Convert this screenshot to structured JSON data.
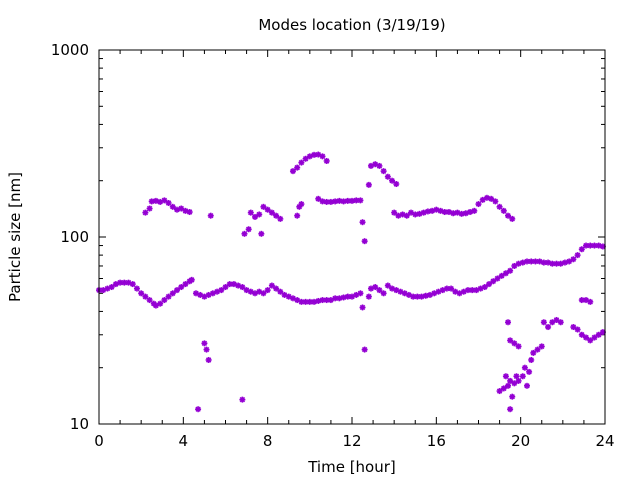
{
  "chart_data": {
    "type": "scatter",
    "title": "Modes location (3/19/19)",
    "xlabel": "Time [hour]",
    "ylabel": "Particle size [nm]",
    "xlim": [
      0,
      24
    ],
    "ylim": [
      10,
      1000
    ],
    "yscale": "log",
    "grid": false,
    "legend": "none",
    "marker_color": "#9400d3",
    "xticks": [
      0,
      4,
      8,
      12,
      16,
      20,
      24
    ],
    "xtick_labels": [
      "0",
      "4",
      "8",
      "12",
      "16",
      "20",
      "24"
    ],
    "yticks": [
      10,
      100,
      1000
    ],
    "ytick_labels": [
      "10",
      "100",
      "1000"
    ],
    "series": [
      {
        "values": [
          [
            0.0,
            52.0
          ],
          [
            0.2,
            52.0
          ],
          [
            0.4,
            53.0
          ],
          [
            0.6,
            54.0
          ],
          [
            0.8,
            56.0
          ],
          [
            1.0,
            57.0
          ],
          [
            1.2,
            57.0
          ],
          [
            1.4,
            57.0
          ],
          [
            1.6,
            56.0
          ],
          [
            1.8,
            53.0
          ],
          [
            2.0,
            50.0
          ],
          [
            2.2,
            48.0
          ],
          [
            2.4,
            46.0
          ],
          [
            2.6,
            44.0
          ],
          [
            2.7,
            43.0
          ],
          [
            2.9,
            44.0
          ],
          [
            3.1,
            46.0
          ],
          [
            3.3,
            48.0
          ],
          [
            3.5,
            50.0
          ],
          [
            3.7,
            52.0
          ],
          [
            3.9,
            54.0
          ],
          [
            4.1,
            56.0
          ],
          [
            4.3,
            58.0
          ],
          [
            4.4,
            59.0
          ],
          [
            4.6,
            50.0
          ],
          [
            4.8,
            49.0
          ],
          [
            5.0,
            48.0
          ],
          [
            5.2,
            49.0
          ],
          [
            5.4,
            50.0
          ],
          [
            5.6,
            51.0
          ],
          [
            5.8,
            52.0
          ],
          [
            6.0,
            54.0
          ],
          [
            6.2,
            56.0
          ],
          [
            6.4,
            56.0
          ],
          [
            6.6,
            55.0
          ],
          [
            6.8,
            54.0
          ],
          [
            7.0,
            52.0
          ],
          [
            7.2,
            51.0
          ],
          [
            7.4,
            50.0
          ],
          [
            7.6,
            51.0
          ],
          [
            7.8,
            50.0
          ],
          [
            8.0,
            52.0
          ],
          [
            8.2,
            55.0
          ],
          [
            8.4,
            53.0
          ],
          [
            8.6,
            51.0
          ],
          [
            8.8,
            49.0
          ],
          [
            9.0,
            48.0
          ],
          [
            9.2,
            47.0
          ],
          [
            9.4,
            46.0
          ],
          [
            9.6,
            45.0
          ],
          [
            9.8,
            45.0
          ],
          [
            10.0,
            45.0
          ],
          [
            10.2,
            45.0
          ],
          [
            10.4,
            45.5
          ],
          [
            10.6,
            46.0
          ],
          [
            10.8,
            46.0
          ],
          [
            11.0,
            46.0
          ],
          [
            11.2,
            47.0
          ],
          [
            11.4,
            47.0
          ],
          [
            11.6,
            47.5
          ],
          [
            11.8,
            48.0
          ],
          [
            12.0,
            48.0
          ],
          [
            12.2,
            49.0
          ],
          [
            12.4,
            50.0
          ],
          [
            12.5,
            42.0
          ],
          [
            12.8,
            48.0
          ],
          [
            12.9,
            53.0
          ],
          [
            13.1,
            54.0
          ],
          [
            13.3,
            52.0
          ],
          [
            13.5,
            50.0
          ],
          [
            13.7,
            55.0
          ],
          [
            13.9,
            53.0
          ],
          [
            14.1,
            52.0
          ],
          [
            14.3,
            51.0
          ],
          [
            14.5,
            50.0
          ],
          [
            14.7,
            49.0
          ],
          [
            14.9,
            48.0
          ],
          [
            15.1,
            48.0
          ],
          [
            15.3,
            48.0
          ],
          [
            15.5,
            48.5
          ],
          [
            15.7,
            49.0
          ],
          [
            15.9,
            50.0
          ],
          [
            16.1,
            51.0
          ],
          [
            16.3,
            52.0
          ],
          [
            16.5,
            53.0
          ],
          [
            16.7,
            53.0
          ],
          [
            16.9,
            51.0
          ],
          [
            17.1,
            50.0
          ],
          [
            17.3,
            51.0
          ],
          [
            17.5,
            52.0
          ],
          [
            17.7,
            52.0
          ],
          [
            17.9,
            52.0
          ],
          [
            18.1,
            53.0
          ],
          [
            18.3,
            54.0
          ],
          [
            18.5,
            56.0
          ],
          [
            18.7,
            58.0
          ],
          [
            18.9,
            60.0
          ],
          [
            19.1,
            62.0
          ],
          [
            19.3,
            64.0
          ],
          [
            19.5,
            66.0
          ],
          [
            19.7,
            70.0
          ],
          [
            19.9,
            72.0
          ],
          [
            20.1,
            73.0
          ],
          [
            20.3,
            74.0
          ],
          [
            20.5,
            74.0
          ],
          [
            20.7,
            74.0
          ],
          [
            20.9,
            74.0
          ],
          [
            21.1,
            73.0
          ],
          [
            21.3,
            73.0
          ],
          [
            21.5,
            72.0
          ],
          [
            21.7,
            72.0
          ],
          [
            21.9,
            72.0
          ],
          [
            22.1,
            73.0
          ],
          [
            22.3,
            74.0
          ],
          [
            22.5,
            76.0
          ],
          [
            22.7,
            80.0
          ],
          [
            22.9,
            86.0
          ],
          [
            23.1,
            90.0
          ],
          [
            23.3,
            90.0
          ],
          [
            23.5,
            90.0
          ],
          [
            23.7,
            90.0
          ],
          [
            23.9,
            89.0
          ],
          [
            2.2,
            135.0
          ],
          [
            2.4,
            142.0
          ],
          [
            2.5,
            155.0
          ],
          [
            2.7,
            156.0
          ],
          [
            2.9,
            154.0
          ],
          [
            3.1,
            157.0
          ],
          [
            3.3,
            152.0
          ],
          [
            3.5,
            145.0
          ],
          [
            3.7,
            140.0
          ],
          [
            3.9,
            142.0
          ],
          [
            4.1,
            138.0
          ],
          [
            4.3,
            136.0
          ],
          [
            5.3,
            130.0
          ],
          [
            6.9,
            104.0
          ],
          [
            7.1,
            110.0
          ],
          [
            7.2,
            135.0
          ],
          [
            7.4,
            128.0
          ],
          [
            7.6,
            132.0
          ],
          [
            7.7,
            104.0
          ],
          [
            7.8,
            145.0
          ],
          [
            8.0,
            140.0
          ],
          [
            8.2,
            135.0
          ],
          [
            8.4,
            130.0
          ],
          [
            8.6,
            125.0
          ],
          [
            9.2,
            225.0
          ],
          [
            9.4,
            235.0
          ],
          [
            9.6,
            250.0
          ],
          [
            9.8,
            262.0
          ],
          [
            10.0,
            270.0
          ],
          [
            10.2,
            275.0
          ],
          [
            10.4,
            276.0
          ],
          [
            10.6,
            270.0
          ],
          [
            10.8,
            255.0
          ],
          [
            9.4,
            130.0
          ],
          [
            9.5,
            145.0
          ],
          [
            9.6,
            150.0
          ],
          [
            10.4,
            160.0
          ],
          [
            10.6,
            155.0
          ],
          [
            10.8,
            154.0
          ],
          [
            11.0,
            154.0
          ],
          [
            11.2,
            155.0
          ],
          [
            11.4,
            156.0
          ],
          [
            11.6,
            155.0
          ],
          [
            11.8,
            156.0
          ],
          [
            12.0,
            156.0
          ],
          [
            12.2,
            157.0
          ],
          [
            12.4,
            157.0
          ],
          [
            12.5,
            120.0
          ],
          [
            12.6,
            95.0
          ],
          [
            12.8,
            190.0
          ],
          [
            12.9,
            240.0
          ],
          [
            13.1,
            245.0
          ],
          [
            13.3,
            240.0
          ],
          [
            13.5,
            225.0
          ],
          [
            13.7,
            210.0
          ],
          [
            13.9,
            200.0
          ],
          [
            14.1,
            192.0
          ],
          [
            14.0,
            135.0
          ],
          [
            14.2,
            130.0
          ],
          [
            14.4,
            132.0
          ],
          [
            14.6,
            130.0
          ],
          [
            14.8,
            135.0
          ],
          [
            15.0,
            132.0
          ],
          [
            15.2,
            133.0
          ],
          [
            15.4,
            135.0
          ],
          [
            15.6,
            137.0
          ],
          [
            15.8,
            138.0
          ],
          [
            16.0,
            140.0
          ],
          [
            16.2,
            138.0
          ],
          [
            16.4,
            136.0
          ],
          [
            16.6,
            136.0
          ],
          [
            16.8,
            134.0
          ],
          [
            17.0,
            135.0
          ],
          [
            17.2,
            133.0
          ],
          [
            17.4,
            134.0
          ],
          [
            17.6,
            136.0
          ],
          [
            17.8,
            138.0
          ],
          [
            18.0,
            150.0
          ],
          [
            18.2,
            158.0
          ],
          [
            18.4,
            162.0
          ],
          [
            18.6,
            160.0
          ],
          [
            18.8,
            155.0
          ],
          [
            19.0,
            145.0
          ],
          [
            19.2,
            138.0
          ],
          [
            19.4,
            130.0
          ],
          [
            19.6,
            125.0
          ],
          [
            4.7,
            12.0
          ],
          [
            5.0,
            27.0
          ],
          [
            5.1,
            25.0
          ],
          [
            5.2,
            22.0
          ],
          [
            6.8,
            13.5
          ],
          [
            12.6,
            25.0
          ],
          [
            19.0,
            15.0
          ],
          [
            19.2,
            15.5
          ],
          [
            19.4,
            16.0
          ],
          [
            19.3,
            18.0
          ],
          [
            19.5,
            17.0
          ],
          [
            19.6,
            14.0
          ],
          [
            19.5,
            12.0
          ],
          [
            19.7,
            16.5
          ],
          [
            19.8,
            18.0
          ],
          [
            19.9,
            17.0
          ],
          [
            20.1,
            18.0
          ],
          [
            20.3,
            16.0
          ],
          [
            20.4,
            19.0
          ],
          [
            20.5,
            22.0
          ],
          [
            19.4,
            35.0
          ],
          [
            19.5,
            28.0
          ],
          [
            19.7,
            27.0
          ],
          [
            19.9,
            26.0
          ],
          [
            20.2,
            20.0
          ],
          [
            20.6,
            24.0
          ],
          [
            20.8,
            25.0
          ],
          [
            21.0,
            26.0
          ],
          [
            21.1,
            35.0
          ],
          [
            21.3,
            33.0
          ],
          [
            21.5,
            35.0
          ],
          [
            21.7,
            36.0
          ],
          [
            21.9,
            35.0
          ],
          [
            22.5,
            33.0
          ],
          [
            22.7,
            32.0
          ],
          [
            22.9,
            30.0
          ],
          [
            23.1,
            29.0
          ],
          [
            23.3,
            28.0
          ],
          [
            23.5,
            29.0
          ],
          [
            23.7,
            30.0
          ],
          [
            23.9,
            31.0
          ],
          [
            22.9,
            46.0
          ],
          [
            23.1,
            46.0
          ],
          [
            23.3,
            45.0
          ]
        ]
      }
    ]
  }
}
